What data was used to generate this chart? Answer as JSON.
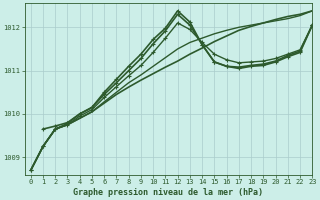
{
  "background_color": "#cceee8",
  "grid_color": "#aacccc",
  "line_color": "#2d5a2d",
  "text_color": "#2d5a2d",
  "xlabel": "Graphe pression niveau de la mer (hPa)",
  "xlim": [
    -0.5,
    23
  ],
  "ylim": [
    1008.6,
    1012.55
  ],
  "yticks": [
    1009,
    1010,
    1011,
    1012
  ],
  "xticks": [
    0,
    1,
    2,
    3,
    4,
    5,
    6,
    7,
    8,
    9,
    10,
    11,
    12,
    13,
    14,
    15,
    16,
    17,
    18,
    19,
    20,
    21,
    22,
    23
  ],
  "series": [
    {
      "x": [
        0,
        1,
        2,
        3,
        4,
        5,
        6,
        7,
        8,
        9,
        10,
        11,
        12,
        13,
        14,
        15,
        16,
        17,
        18,
        19,
        20,
        21,
        22,
        23
      ],
      "y": [
        1008.7,
        1009.25,
        1009.65,
        1009.75,
        1009.9,
        1010.05,
        1010.25,
        1010.45,
        1010.62,
        1010.78,
        1010.93,
        1011.08,
        1011.22,
        1011.38,
        1011.52,
        1011.67,
        1011.8,
        1011.93,
        1012.02,
        1012.1,
        1012.18,
        1012.25,
        1012.3,
        1012.38
      ],
      "marker": false,
      "linewidth": 1.2
    },
    {
      "x": [
        0,
        1,
        2,
        3,
        4,
        5,
        6,
        7,
        8,
        9,
        10,
        11,
        12,
        13,
        14,
        15,
        16,
        17,
        18,
        19,
        20,
        21,
        22,
        23
      ],
      "y": [
        1008.7,
        1009.25,
        1009.65,
        1009.75,
        1009.9,
        1010.05,
        1010.28,
        1010.5,
        1010.72,
        1010.9,
        1011.1,
        1011.3,
        1011.5,
        1011.65,
        1011.75,
        1011.85,
        1011.93,
        1012.0,
        1012.05,
        1012.1,
        1012.15,
        1012.2,
        1012.27,
        1012.38
      ],
      "marker": false,
      "linewidth": 1.0
    },
    {
      "x": [
        0,
        1,
        2,
        3,
        4,
        5,
        6,
        7,
        8,
        9,
        10,
        11,
        12,
        13,
        14,
        15,
        16,
        17,
        18,
        19,
        20,
        21,
        22,
        23
      ],
      "y": [
        1008.7,
        1009.25,
        1009.65,
        1009.75,
        1009.95,
        1010.1,
        1010.38,
        1010.63,
        1010.88,
        1011.12,
        1011.42,
        1011.75,
        1012.1,
        1011.95,
        1011.65,
        1011.38,
        1011.25,
        1011.18,
        1011.2,
        1011.22,
        1011.28,
        1011.38,
        1011.48,
        1012.05
      ],
      "marker": true,
      "linewidth": 1.0
    },
    {
      "x": [
        0,
        1,
        2,
        3,
        4,
        5,
        6,
        7,
        8,
        9,
        10,
        11,
        12,
        13,
        14,
        15,
        16,
        17,
        18,
        19,
        20,
        21,
        22,
        23
      ],
      "y": [
        1008.7,
        1009.25,
        1009.65,
        1009.78,
        1010.0,
        1010.15,
        1010.45,
        1010.72,
        1011.0,
        1011.28,
        1011.62,
        1011.92,
        1012.3,
        1012.05,
        1011.6,
        1011.2,
        1011.1,
        1011.08,
        1011.12,
        1011.15,
        1011.22,
        1011.35,
        1011.45,
        1012.05
      ],
      "marker": true,
      "linewidth": 1.2
    },
    {
      "x": [
        1,
        2,
        3,
        4,
        5,
        6,
        7,
        8,
        9,
        10,
        11,
        12,
        13,
        14,
        15,
        16,
        17,
        18,
        19,
        20,
        21,
        22,
        23
      ],
      "y": [
        1009.65,
        1009.72,
        1009.8,
        1010.0,
        1010.15,
        1010.5,
        1010.8,
        1011.1,
        1011.38,
        1011.72,
        1011.98,
        1012.38,
        1012.12,
        1011.6,
        1011.2,
        1011.1,
        1011.05,
        1011.1,
        1011.12,
        1011.2,
        1011.32,
        1011.42,
        1012.05
      ],
      "marker": true,
      "linewidth": 1.2
    }
  ]
}
